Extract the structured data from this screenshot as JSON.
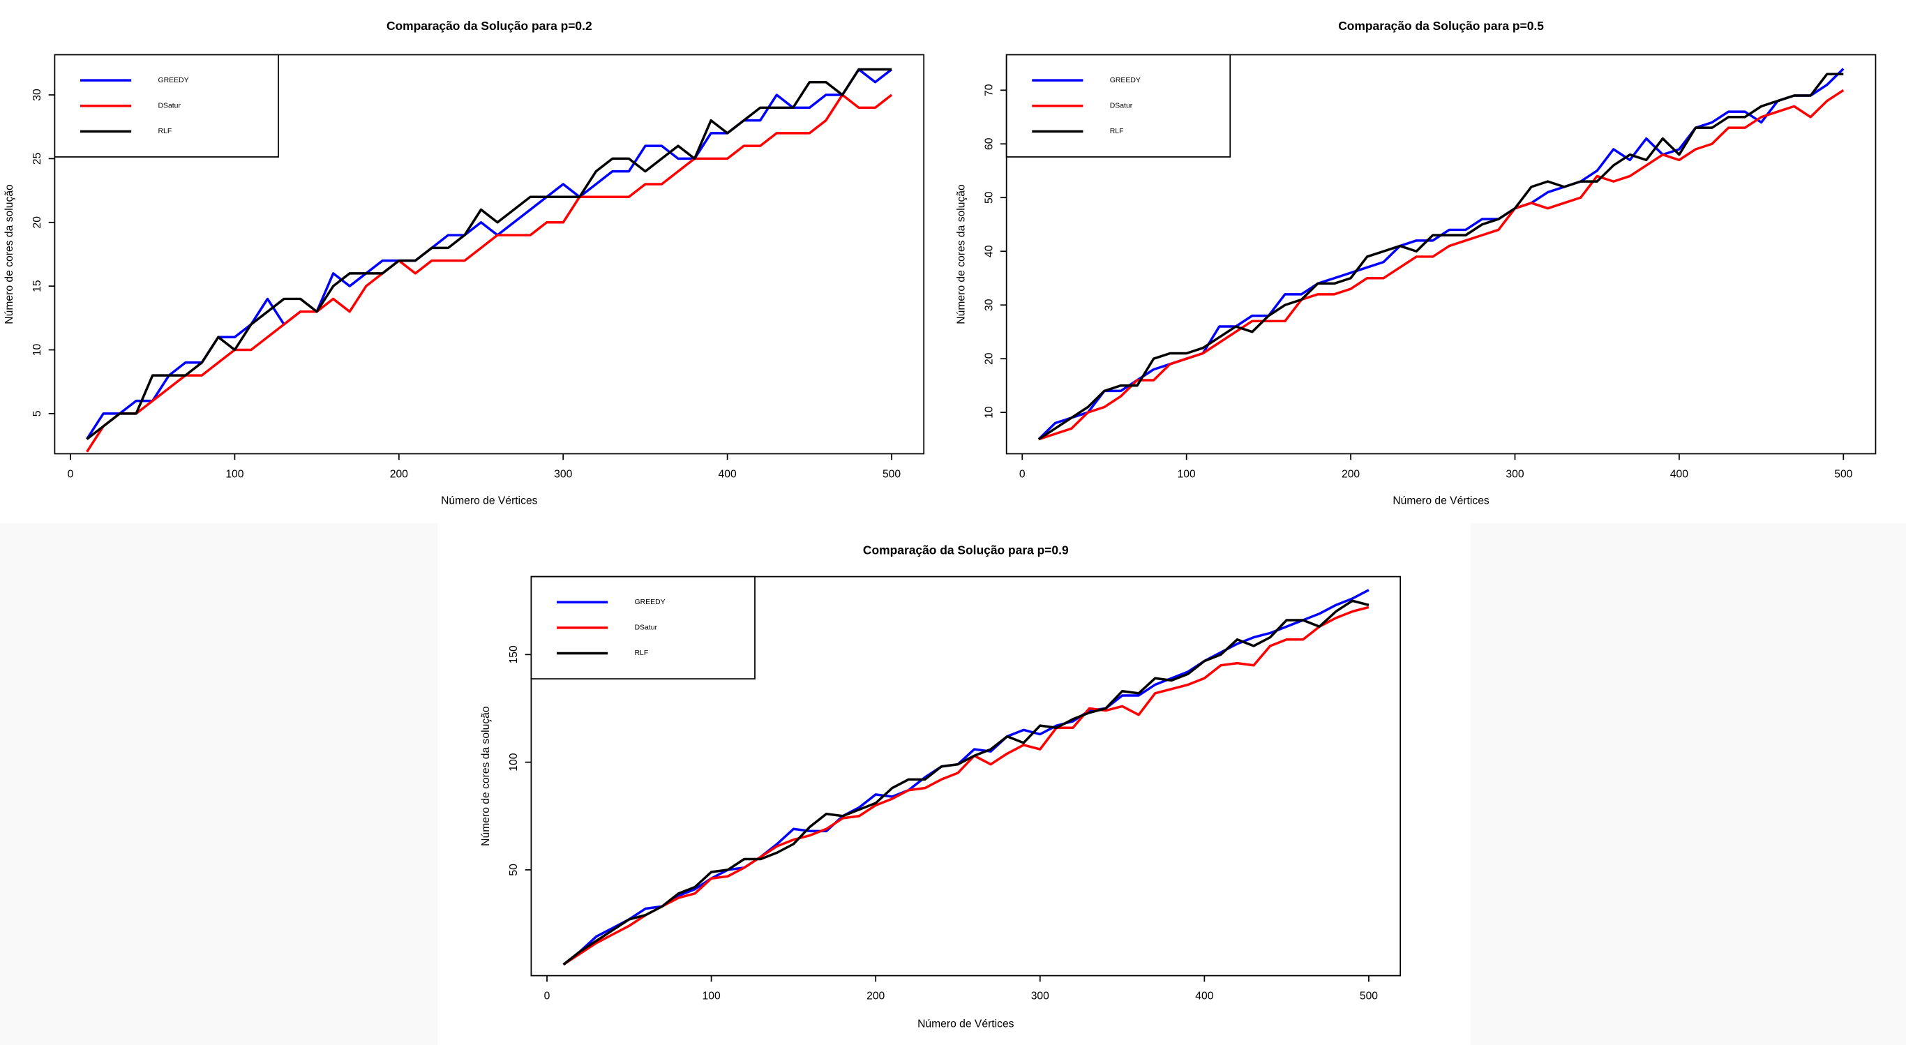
{
  "chart_data": [
    {
      "type": "line",
      "title": "Comparação da Solução para p=0.2",
      "xlabel": "Número de Vértices",
      "ylabel": "Número de cores da solução",
      "x": [
        10,
        20,
        30,
        40,
        50,
        60,
        70,
        80,
        90,
        100,
        110,
        120,
        130,
        140,
        150,
        160,
        170,
        180,
        190,
        200,
        210,
        220,
        230,
        240,
        250,
        260,
        270,
        280,
        290,
        300,
        310,
        320,
        330,
        340,
        350,
        360,
        370,
        380,
        390,
        400,
        410,
        420,
        430,
        440,
        450,
        460,
        470,
        480,
        490,
        500
      ],
      "xlim": [
        -9.6,
        519.6
      ],
      "xticks": [
        0,
        100,
        200,
        300,
        400,
        500
      ],
      "ylim": [
        1.85,
        33.15
      ],
      "yticks": [
        5,
        10,
        15,
        20,
        25,
        30
      ],
      "legend": "top-left",
      "series": [
        {
          "name": "GREEDY",
          "color": "#0000ff",
          "values": [
            3,
            5,
            5,
            6,
            6,
            8,
            9,
            9,
            11,
            11,
            12,
            14,
            12,
            13,
            13,
            16,
            15,
            16,
            17,
            17,
            17,
            18,
            19,
            19,
            20,
            19,
            20,
            21,
            22,
            23,
            22,
            23,
            24,
            24,
            26,
            26,
            25,
            25,
            27,
            27,
            28,
            28,
            30,
            29,
            29,
            30,
            30,
            32,
            31,
            32
          ]
        },
        {
          "name": "DSatur",
          "color": "#ff0000",
          "values": [
            2,
            4,
            5,
            5,
            6,
            7,
            8,
            8,
            9,
            10,
            10,
            11,
            12,
            13,
            13,
            14,
            13,
            15,
            16,
            17,
            16,
            17,
            17,
            17,
            18,
            19,
            19,
            19,
            20,
            20,
            22,
            22,
            22,
            22,
            23,
            23,
            24,
            25,
            25,
            25,
            26,
            26,
            27,
            27,
            27,
            28,
            30,
            29,
            29,
            30
          ]
        },
        {
          "name": "RLF",
          "color": "#000000",
          "values": [
            3,
            4,
            5,
            5,
            8,
            8,
            8,
            9,
            11,
            10,
            12,
            13,
            14,
            14,
            13,
            15,
            16,
            16,
            16,
            17,
            17,
            18,
            18,
            19,
            21,
            20,
            21,
            22,
            22,
            22,
            22,
            24,
            25,
            25,
            24,
            25,
            26,
            25,
            28,
            27,
            28,
            29,
            29,
            29,
            31,
            31,
            30,
            32,
            32,
            32
          ]
        }
      ]
    },
    {
      "type": "line",
      "title": "Comparação da Solução para p=0.5",
      "xlabel": "Número de Vértices",
      "ylabel": "Número de cores da solução",
      "x": [
        10,
        20,
        30,
        40,
        50,
        60,
        70,
        80,
        90,
        100,
        110,
        120,
        130,
        140,
        150,
        160,
        170,
        180,
        190,
        200,
        210,
        220,
        230,
        240,
        250,
        260,
        270,
        280,
        290,
        300,
        310,
        320,
        330,
        340,
        350,
        360,
        370,
        380,
        390,
        400,
        410,
        420,
        430,
        440,
        450,
        460,
        470,
        480,
        490,
        500
      ],
      "xlim": [
        -9.6,
        519.6
      ],
      "xticks": [
        0,
        100,
        200,
        300,
        400,
        500
      ],
      "ylim": [
        2.3,
        76.6
      ],
      "yticks": [
        10,
        20,
        30,
        40,
        50,
        60,
        70
      ],
      "legend": "top-left",
      "series": [
        {
          "name": "GREEDY",
          "color": "#0000ff",
          "values": [
            5,
            8,
            9,
            10,
            14,
            14,
            16,
            18,
            19,
            20,
            21,
            26,
            26,
            28,
            28,
            32,
            32,
            34,
            35,
            36,
            37,
            38,
            41,
            42,
            42,
            44,
            44,
            46,
            46,
            48,
            49,
            51,
            52,
            53,
            55,
            59,
            57,
            61,
            58,
            59,
            63,
            64,
            66,
            66,
            64,
            68,
            69,
            69,
            71,
            74
          ]
        },
        {
          "name": "DSatur",
          "color": "#ff0000",
          "values": [
            5,
            6,
            7,
            10,
            11,
            13,
            16,
            16,
            19,
            20,
            21,
            23,
            25,
            27,
            27,
            27,
            31,
            32,
            32,
            33,
            35,
            35,
            37,
            39,
            39,
            41,
            42,
            43,
            44,
            48,
            49,
            48,
            49,
            50,
            54,
            53,
            54,
            56,
            58,
            57,
            59,
            60,
            63,
            63,
            65,
            66,
            67,
            65,
            68,
            70
          ]
        },
        {
          "name": "RLF",
          "color": "#000000",
          "values": [
            5,
            7,
            9,
            11,
            14,
            15,
            15,
            20,
            21,
            21,
            22,
            24,
            26,
            25,
            28,
            30,
            31,
            34,
            34,
            35,
            39,
            40,
            41,
            40,
            43,
            43,
            43,
            45,
            46,
            48,
            52,
            53,
            52,
            53,
            53,
            56,
            58,
            57,
            61,
            58,
            63,
            63,
            65,
            65,
            67,
            68,
            69,
            69,
            73,
            73
          ]
        }
      ]
    },
    {
      "type": "line",
      "title": "Comparação da Solução para p=0.9",
      "xlabel": "Número de Vértices",
      "ylabel": "Número de cores da solução",
      "x": [
        10,
        20,
        30,
        40,
        50,
        60,
        70,
        80,
        90,
        100,
        110,
        120,
        130,
        140,
        150,
        160,
        170,
        180,
        190,
        200,
        210,
        220,
        230,
        240,
        250,
        260,
        270,
        280,
        290,
        300,
        310,
        320,
        330,
        340,
        350,
        360,
        370,
        380,
        390,
        400,
        410,
        420,
        430,
        440,
        450,
        460,
        470,
        480,
        490,
        500
      ],
      "xlim": [
        -9.6,
        519.2
      ],
      "xticks": [
        0,
        100,
        200,
        300,
        400,
        500
      ],
      "ylim": [
        0.85,
        186.2
      ],
      "yticks": [
        50,
        100,
        150
      ],
      "legend": "top-left",
      "series": [
        {
          "name": "GREEDY",
          "color": "#0000ff",
          "values": [
            6,
            12,
            19,
            23,
            27,
            32,
            33,
            38,
            41,
            46,
            50,
            51,
            56,
            62,
            69,
            68,
            68,
            75,
            79,
            85,
            84,
            87,
            93,
            98,
            99,
            106,
            105,
            112,
            115,
            113,
            117,
            119,
            124,
            125,
            131,
            131,
            136,
            139,
            142,
            147,
            151,
            155,
            158,
            160,
            163,
            166,
            169,
            173,
            176,
            180
          ]
        },
        {
          "name": "DSatur",
          "color": "#ff0000",
          "values": [
            6,
            11,
            16,
            20,
            24,
            29,
            33,
            37,
            39,
            46,
            47,
            51,
            56,
            61,
            64,
            66,
            69,
            74,
            75,
            80,
            83,
            87,
            88,
            92,
            95,
            103,
            99,
            104,
            108,
            106,
            116,
            116,
            125,
            124,
            126,
            122,
            132,
            134,
            136,
            139,
            145,
            146,
            145,
            154,
            157,
            157,
            163,
            167,
            170,
            172
          ]
        },
        {
          "name": "RLF",
          "color": "#000000",
          "values": [
            6,
            12,
            17,
            22,
            27,
            29,
            33,
            39,
            42,
            49,
            50,
            55,
            55,
            58,
            62,
            70,
            76,
            75,
            78,
            81,
            88,
            92,
            92,
            98,
            99,
            103,
            106,
            112,
            109,
            117,
            116,
            120,
            123,
            125,
            133,
            132,
            139,
            138,
            141,
            147,
            150,
            157,
            154,
            158,
            166,
            166,
            163,
            170,
            175,
            173
          ]
        }
      ]
    }
  ]
}
